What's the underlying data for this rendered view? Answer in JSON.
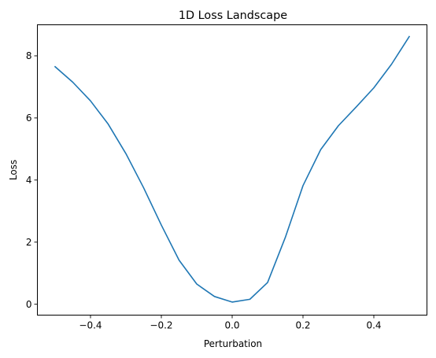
{
  "chart_data": {
    "type": "line",
    "title": "1D Loss Landscape",
    "xlabel": "Perturbation",
    "ylabel": "Loss",
    "xlim": [
      -0.55,
      0.55
    ],
    "ylim": [
      -0.35,
      9.0
    ],
    "xticks": [
      -0.4,
      -0.2,
      0.0,
      0.2,
      0.4
    ],
    "xtick_labels": [
      "−0.4",
      "−0.2",
      "0.0",
      "0.2",
      "0.4"
    ],
    "yticks": [
      0,
      2,
      4,
      6,
      8
    ],
    "ytick_labels": [
      "0",
      "2",
      "4",
      "6",
      "8"
    ],
    "grid": false,
    "series": [
      {
        "color": "#1f77b4",
        "x": [
          -0.5,
          -0.45,
          -0.4,
          -0.35,
          -0.3,
          -0.25,
          -0.2,
          -0.15,
          -0.1,
          -0.05,
          0.0,
          0.05,
          0.1,
          0.15,
          0.2,
          0.25,
          0.3,
          0.35,
          0.4,
          0.45,
          0.5
        ],
        "y": [
          7.65,
          7.15,
          6.55,
          5.8,
          4.85,
          3.75,
          2.55,
          1.42,
          0.65,
          0.25,
          0.07,
          0.16,
          0.7,
          2.15,
          3.82,
          4.98,
          5.75,
          6.35,
          6.97,
          7.73,
          8.62
        ]
      }
    ]
  }
}
